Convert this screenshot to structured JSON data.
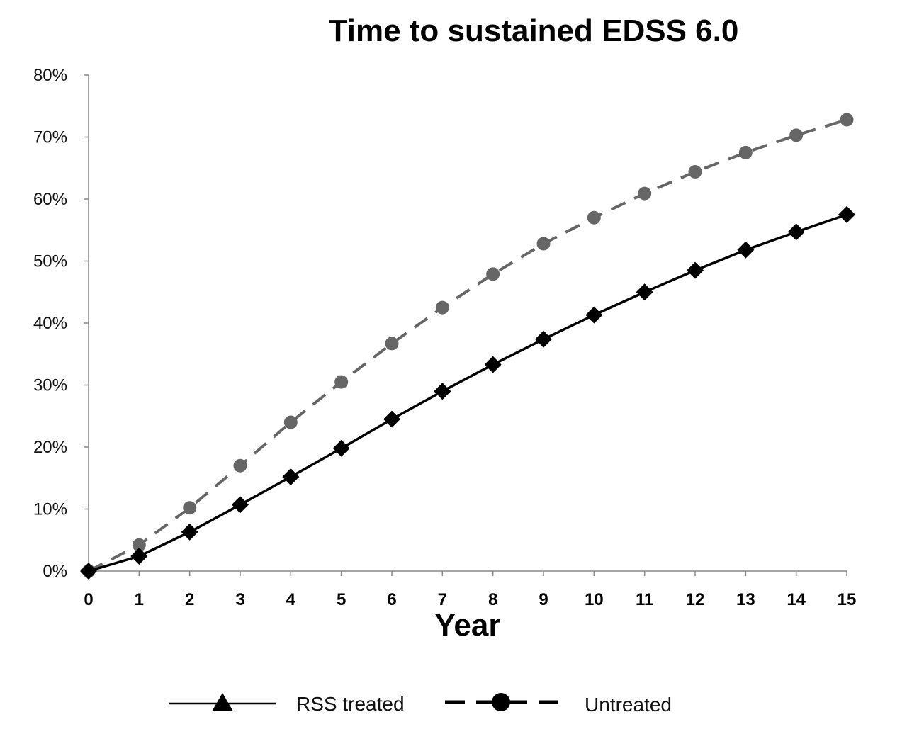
{
  "chart_data": {
    "type": "line",
    "title": "Time to sustained EDSS 6.0",
    "xlabel": "Year",
    "ylabel": "",
    "x": [
      0,
      1,
      2,
      3,
      4,
      5,
      6,
      7,
      8,
      9,
      10,
      11,
      12,
      13,
      14,
      15
    ],
    "xlim": [
      0,
      15
    ],
    "ylim": [
      0,
      0.8
    ],
    "yticks": [
      0,
      0.1,
      0.2,
      0.3,
      0.4,
      0.5,
      0.6,
      0.7,
      0.8
    ],
    "ytick_labels": [
      "0%",
      "10%",
      "20%",
      "30%",
      "40%",
      "50%",
      "60%",
      "70%",
      "80%"
    ],
    "xtick_labels": [
      "0",
      "1",
      "2",
      "3",
      "4",
      "5",
      "6",
      "7",
      "8",
      "9",
      "10",
      "11",
      "12",
      "13",
      "14",
      "15"
    ],
    "grid": false,
    "legend_position": "bottom",
    "series": [
      {
        "name": "RSS treated",
        "style": "solid",
        "color": "#000000",
        "marker": "diamond",
        "legend_marker": "triangle",
        "values": [
          0.0,
          0.024,
          0.063,
          0.107,
          0.152,
          0.198,
          0.245,
          0.29,
          0.333,
          0.374,
          0.413,
          0.45,
          0.485,
          0.518,
          0.547,
          0.575
        ]
      },
      {
        "name": "Untreated",
        "style": "dashed",
        "color": "#666666",
        "legend_color": "#000000",
        "marker": "circle",
        "values": [
          0.0,
          0.042,
          0.102,
          0.17,
          0.24,
          0.305,
          0.367,
          0.425,
          0.479,
          0.528,
          0.57,
          0.609,
          0.644,
          0.675,
          0.703,
          0.728
        ]
      }
    ]
  }
}
